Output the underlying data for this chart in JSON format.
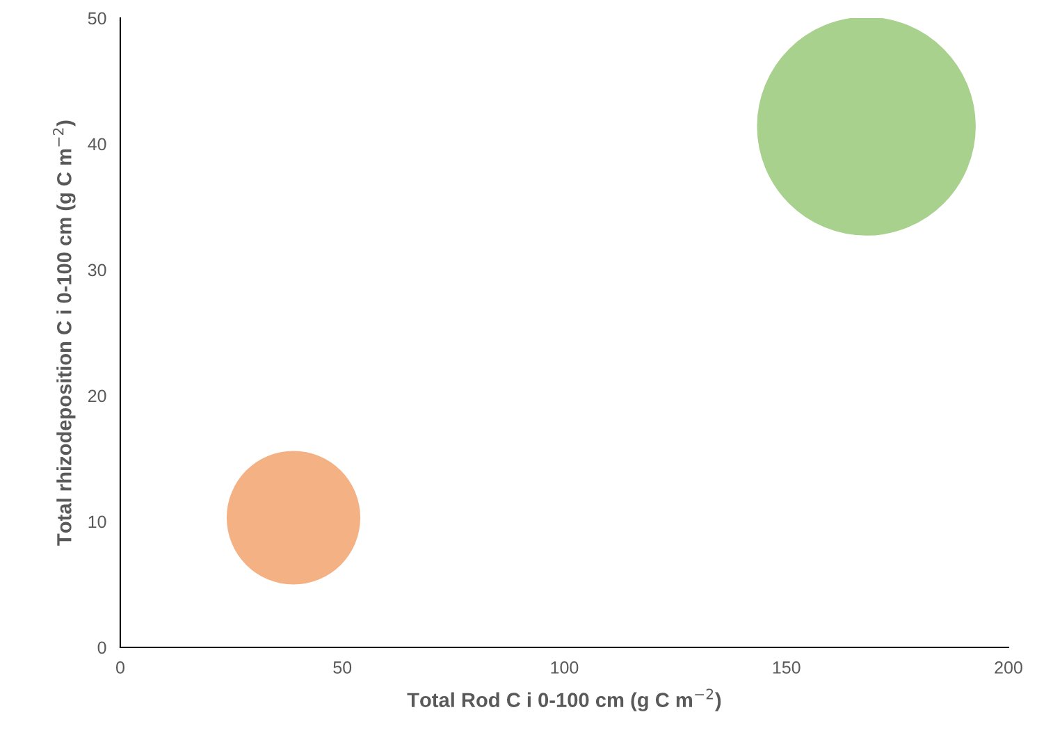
{
  "chart_data": {
    "type": "bubble",
    "xlabel": "Total Rod C i 0-100 cm (g C m$^{−2}$)",
    "ylabel": "Total rhizodeposition C i 0-100 cm (g C m$^{−2}$)",
    "x": [
      39,
      168
    ],
    "values": [
      10.3,
      41.4
    ],
    "sizes": [
      0.37,
      1
    ],
    "colors": [
      "#f4b183",
      "#a9d18e"
    ],
    "xlim": [
      0,
      200
    ],
    "xticks": [
      0,
      50,
      100,
      150,
      200
    ],
    "ylim": [
      0,
      50
    ],
    "yticks": [
      0,
      10,
      20,
      30,
      40,
      50
    ],
    "grid": false,
    "legend": false
  }
}
